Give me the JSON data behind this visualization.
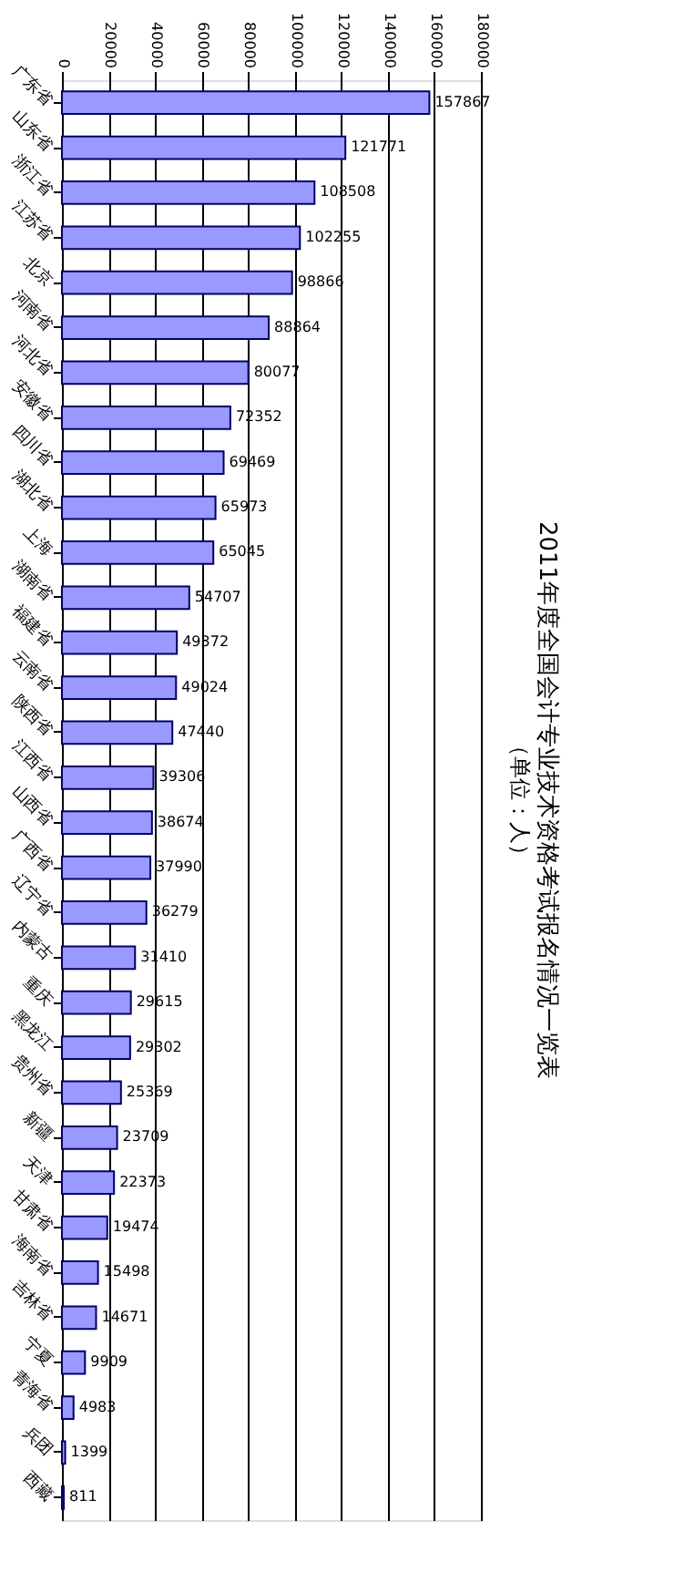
{
  "chart_data": {
    "type": "bar",
    "orientation": "horizontal",
    "title": "2011年度全国会计专业技术资格考试报名情况一览表",
    "subtitle": "（单位：人）",
    "categories": [
      "广东省",
      "山东省",
      "浙江省",
      "江苏省",
      "北京",
      "河南省",
      "河北省",
      "安徽省",
      "四川省",
      "湖北省",
      "上海",
      "湖南省",
      "福建省",
      "云南省",
      "陕西省",
      "江西省",
      "山西省",
      "广西省",
      "辽宁省",
      "内蒙古",
      "重庆",
      "黑龙江",
      "贵州省",
      "新疆",
      "天津",
      "甘肃省",
      "海南省",
      "吉林省",
      "宁夏",
      "青海省",
      "兵团",
      "西藏"
    ],
    "values": [
      157867,
      121771,
      108508,
      102255,
      98866,
      88864,
      80077,
      72352,
      69469,
      65973,
      65045,
      54707,
      49372,
      49024,
      47440,
      39306,
      38674,
      37990,
      36279,
      31410,
      29615,
      29302,
      25369,
      23709,
      22373,
      19474,
      15498,
      14671,
      9909,
      4983,
      1399,
      811
    ],
    "color": "#9999ff",
    "xlim": [
      0,
      180000
    ],
    "xticks": [
      0,
      20000,
      40000,
      60000,
      80000,
      100000,
      120000,
      140000,
      160000,
      180000
    ],
    "grid": "x",
    "data_labels": true
  }
}
